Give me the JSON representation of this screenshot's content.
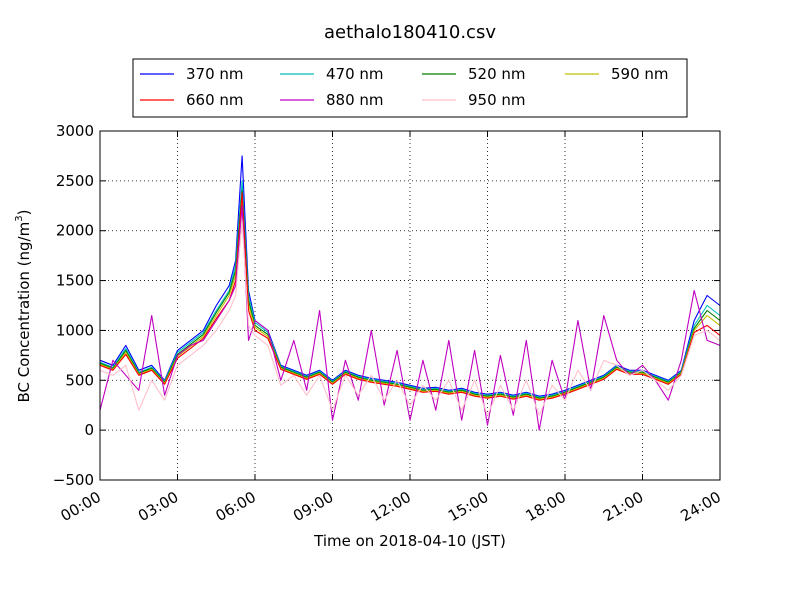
{
  "chart_data": {
    "type": "line",
    "title": "aethalo180410.csv",
    "xlabel": "Time on 2018-04-10 (JST)",
    "ylabel": "BC Concentration (ng/m",
    "ylabel_superscript": "3",
    "ylabel_suffix": ")",
    "xlim": [
      0,
      24
    ],
    "ylim": [
      -500,
      3000
    ],
    "grid": true,
    "legend_position": "top-center",
    "x_ticks": [
      {
        "value": 0,
        "label": "00:00"
      },
      {
        "value": 3,
        "label": "03:00"
      },
      {
        "value": 6,
        "label": "06:00"
      },
      {
        "value": 9,
        "label": "09:00"
      },
      {
        "value": 12,
        "label": "12:00"
      },
      {
        "value": 15,
        "label": "15:00"
      },
      {
        "value": 18,
        "label": "18:00"
      },
      {
        "value": 21,
        "label": "21:00"
      },
      {
        "value": 24,
        "label": "24:00"
      }
    ],
    "y_ticks": [
      {
        "value": -500,
        "label": "−500"
      },
      {
        "value": 0,
        "label": "0"
      },
      {
        "value": 500,
        "label": "500"
      },
      {
        "value": 1000,
        "label": "1000"
      },
      {
        "value": 1500,
        "label": "1500"
      },
      {
        "value": 2000,
        "label": "2000"
      },
      {
        "value": 2500,
        "label": "2500"
      },
      {
        "value": 3000,
        "label": "3000"
      }
    ],
    "x": [
      0,
      0.5,
      1,
      1.5,
      2,
      2.5,
      3,
      3.5,
      4,
      4.5,
      5,
      5.25,
      5.5,
      5.75,
      6,
      6.5,
      7,
      7.5,
      8,
      8.5,
      9,
      9.5,
      10,
      10.5,
      11,
      11.5,
      12,
      12.5,
      13,
      13.5,
      14,
      14.5,
      15,
      15.5,
      16,
      16.5,
      17,
      17.5,
      18,
      18.5,
      19,
      19.5,
      20,
      20.5,
      21,
      21.5,
      22,
      22.5,
      23,
      23.5,
      24
    ],
    "series": [
      {
        "name": "370 nm",
        "color": "#0000ff",
        "values": [
          700,
          650,
          850,
          600,
          650,
          500,
          800,
          900,
          1000,
          1250,
          1450,
          1700,
          2750,
          1400,
          1100,
          1000,
          650,
          600,
          550,
          600,
          500,
          600,
          550,
          520,
          500,
          480,
          450,
          420,
          430,
          400,
          420,
          380,
          360,
          380,
          350,
          380,
          340,
          360,
          400,
          450,
          500,
          550,
          650,
          600,
          600,
          550,
          500,
          600,
          1100,
          1350,
          1250
        ]
      },
      {
        "name": "470 nm",
        "color": "#00c0c0",
        "values": [
          680,
          630,
          820,
          580,
          630,
          490,
          780,
          880,
          980,
          1200,
          1400,
          1650,
          2500,
          1350,
          1080,
          980,
          640,
          590,
          540,
          590,
          490,
          590,
          540,
          510,
          490,
          470,
          440,
          410,
          420,
          390,
          410,
          370,
          350,
          370,
          340,
          370,
          330,
          350,
          390,
          440,
          490,
          540,
          640,
          590,
          590,
          540,
          490,
          590,
          1050,
          1250,
          1150
        ]
      },
      {
        "name": "520 nm",
        "color": "#008000",
        "values": [
          670,
          620,
          800,
          570,
          620,
          480,
          760,
          860,
          960,
          1180,
          1380,
          1600,
          2400,
          1300,
          1050,
          960,
          630,
          580,
          530,
          580,
          480,
          580,
          530,
          500,
          480,
          460,
          430,
          400,
          410,
          380,
          400,
          360,
          340,
          360,
          330,
          360,
          320,
          340,
          380,
          430,
          480,
          530,
          630,
          580,
          580,
          530,
          480,
          580,
          1020,
          1200,
          1100
        ]
      },
      {
        "name": "590 nm",
        "color": "#c0c000",
        "values": [
          660,
          610,
          780,
          560,
          610,
          470,
          740,
          840,
          940,
          1150,
          1350,
          1550,
          2300,
          1250,
          1030,
          940,
          620,
          570,
          520,
          570,
          470,
          570,
          520,
          490,
          470,
          450,
          420,
          390,
          400,
          370,
          390,
          350,
          330,
          350,
          320,
          350,
          310,
          330,
          370,
          420,
          470,
          520,
          620,
          570,
          570,
          520,
          470,
          570,
          1000,
          1150,
          1050
        ]
      },
      {
        "name": "660 nm",
        "color": "#ff0000",
        "values": [
          650,
          600,
          760,
          550,
          600,
          460,
          720,
          820,
          920,
          1120,
          1300,
          1500,
          2380,
          1200,
          1000,
          920,
          610,
          560,
          510,
          560,
          460,
          560,
          510,
          480,
          460,
          440,
          410,
          380,
          390,
          360,
          380,
          340,
          320,
          340,
          310,
          340,
          300,
          320,
          360,
          410,
          460,
          510,
          610,
          560,
          560,
          510,
          460,
          560,
          980,
          1050,
          950
        ]
      },
      {
        "name": "880 nm",
        "color": "#c000c0",
        "values": [
          200,
          700,
          550,
          400,
          1150,
          350,
          750,
          850,
          900,
          1100,
          1300,
          1450,
          2250,
          900,
          1100,
          1000,
          500,
          900,
          400,
          1200,
          100,
          700,
          300,
          1000,
          250,
          800,
          100,
          700,
          200,
          900,
          100,
          800,
          50,
          750,
          150,
          900,
          0,
          700,
          300,
          1100,
          400,
          1150,
          700,
          550,
          650,
          500,
          300,
          700,
          1400,
          900,
          850
        ]
      },
      {
        "name": "950 nm",
        "color": "#ffc0cb",
        "values": [
          600,
          550,
          650,
          200,
          500,
          300,
          650,
          750,
          850,
          1000,
          1200,
          1350,
          2100,
          1050,
          950,
          850,
          450,
          550,
          350,
          550,
          200,
          550,
          350,
          550,
          300,
          500,
          250,
          450,
          300,
          500,
          200,
          500,
          150,
          450,
          200,
          500,
          150,
          450,
          300,
          600,
          400,
          700,
          650,
          550,
          600,
          500,
          400,
          550,
          950,
          1000,
          900
        ]
      }
    ]
  }
}
